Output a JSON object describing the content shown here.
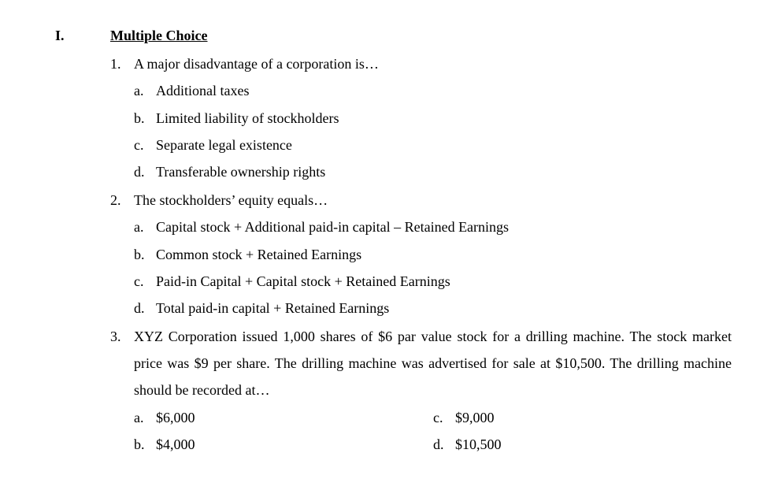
{
  "section": {
    "numeral": "I.",
    "title": "Multiple Choice"
  },
  "questions": [
    {
      "num": "1.",
      "text": "A major disadvantage of a corporation is…",
      "options": [
        {
          "letter": "a.",
          "text": "Additional taxes"
        },
        {
          "letter": "b.",
          "text": "Limited liability of stockholders"
        },
        {
          "letter": "c.",
          "text": "Separate legal existence"
        },
        {
          "letter": "d.",
          "text": "Transferable ownership rights"
        }
      ]
    },
    {
      "num": "2.",
      "text": "The stockholders’ equity equals…",
      "options": [
        {
          "letter": "a.",
          "text": "Capital stock + Additional paid-in capital – Retained Earnings"
        },
        {
          "letter": "b.",
          "text": "Common stock + Retained Earnings"
        },
        {
          "letter": "c.",
          "text": "Paid-in Capital + Capital stock + Retained Earnings"
        },
        {
          "letter": "d.",
          "text": "Total paid-in capital + Retained Earnings"
        }
      ]
    },
    {
      "num": "3.",
      "text": "XYZ Corporation issued 1,000 shares of $6 par value stock for a drilling machine. The stock market price was $9 per share. The drilling machine was advertised for sale at $10,500. The drilling machine should be recorded at…",
      "options_two_col": [
        {
          "left_letter": "a.",
          "left_text": "$6,000",
          "right_letter": "c.",
          "right_text": "$9,000"
        },
        {
          "left_letter": "b.",
          "left_text": "$4,000",
          "right_letter": "d.",
          "right_text": "$10,500"
        }
      ]
    }
  ]
}
